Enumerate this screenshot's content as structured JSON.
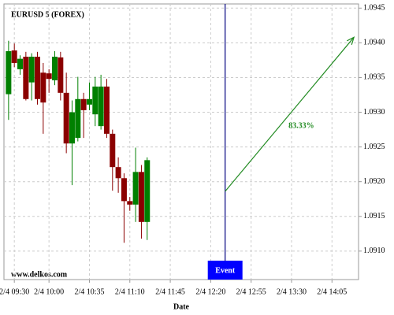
{
  "chart_data": {
    "type": "candlestick",
    "title": "EURUSD 5 (FOREX)",
    "source": "www.delkos.com",
    "x_label": "Date",
    "x": [
      565,
      570,
      575,
      580,
      585,
      590,
      595,
      600,
      605,
      610,
      615,
      620,
      625,
      630,
      635,
      640,
      645,
      650,
      655,
      660,
      665,
      670,
      675,
      680,
      685
    ],
    "open": [
      1.09326,
      1.09389,
      1.09362,
      1.0938,
      1.09343,
      1.0938,
      1.09357,
      1.09356,
      1.09346,
      1.09379,
      1.09328,
      1.09255,
      1.09263,
      1.09319,
      1.09311,
      1.09297,
      1.0928,
      1.09337,
      1.09269,
      1.09221,
      1.09205,
      1.09172,
      1.09167,
      1.09214,
      1.09142
    ],
    "high": [
      1.09403,
      1.09399,
      1.09382,
      1.09387,
      1.09385,
      1.09387,
      1.09371,
      1.09362,
      1.09388,
      1.09387,
      1.09357,
      1.09317,
      1.09351,
      1.09328,
      1.09343,
      1.09351,
      1.09354,
      1.09348,
      1.09275,
      1.09235,
      1.09212,
      1.09178,
      1.09249,
      1.09224,
      1.09235
    ],
    "low": [
      1.09289,
      1.09365,
      1.09354,
      1.09317,
      1.09317,
      1.09311,
      1.09269,
      1.09328,
      1.09339,
      1.09317,
      1.09241,
      1.09195,
      1.09258,
      1.09263,
      1.09303,
      1.0928,
      1.09275,
      1.09263,
      1.09187,
      1.09184,
      1.09112,
      1.09158,
      1.09142,
      1.09118,
      1.09116
    ],
    "close": [
      1.09388,
      1.09371,
      1.09377,
      1.09319,
      1.0938,
      1.09319,
      1.09314,
      1.09348,
      1.0938,
      1.09328,
      1.09255,
      1.093,
      1.09319,
      1.09303,
      1.09319,
      1.09337,
      1.09337,
      1.09269,
      1.09221,
      1.09205,
      1.09172,
      1.09167,
      1.09214,
      1.09142,
      1.09231
    ],
    "up_color": "#008000",
    "down_color": "#8b0000",
    "xlim": [
      561,
      868
    ],
    "ylim": [
      1.09059,
      1.09456
    ],
    "xticks": [
      {
        "value": 570,
        "label": "2/4 09:30"
      },
      {
        "value": 600,
        "label": "2/4 10:00"
      },
      {
        "value": 635,
        "label": "2/4 10:35"
      },
      {
        "value": 670,
        "label": "2/4 11:10"
      },
      {
        "value": 705,
        "label": "2/4 11:45"
      },
      {
        "value": 740,
        "label": "2/4 12:20"
      },
      {
        "value": 775,
        "label": "2/4 12:55"
      },
      {
        "value": 810,
        "label": "2/4 13:30"
      },
      {
        "value": 845,
        "label": "2/4 14:05"
      }
    ],
    "yticks": [
      {
        "value": 1.091,
        "label": "1.0910"
      },
      1.0915,
      {
        "value": 1.092,
        "label": "1.0920"
      },
      1.0925,
      {
        "value": 1.093,
        "label": "1.0930"
      },
      1.0935,
      {
        "value": 1.094,
        "label": "1.0940"
      },
      1.0945
    ],
    "grid": true,
    "event": {
      "x": 752.5,
      "label": "Event",
      "color": "#000080"
    },
    "arrow": {
      "x": [
        752.5,
        864
      ],
      "y": [
        1.09186,
        1.09408
      ],
      "label": "83.33%",
      "color": "#228b22"
    }
  }
}
